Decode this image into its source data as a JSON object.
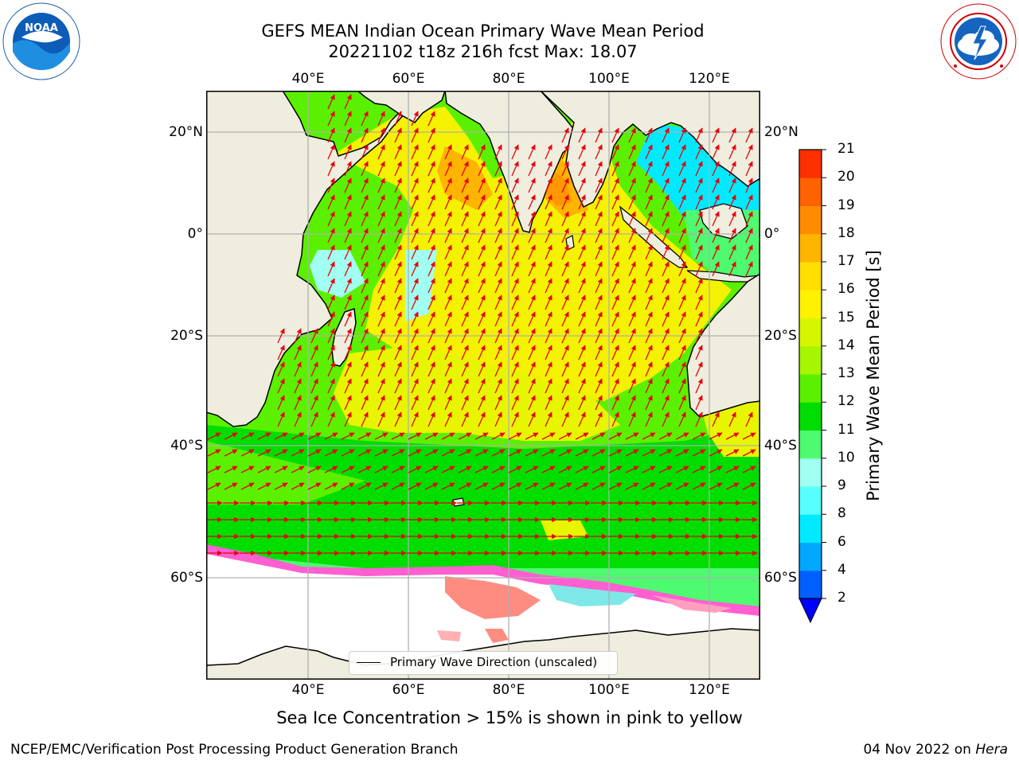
{
  "header": {
    "title_line1": "GEFS MEAN Indian Ocean Primary Wave Mean Period",
    "title_line2": "20221102 t18z 216h fcst   Max: 18.07"
  },
  "logos": {
    "left": {
      "name": "noaa-logo",
      "text": "NOAA",
      "ring_text": "NATIONAL OCEANIC AND ATMOSPHERIC ADMINISTRATION · U.S. DEPARTMENT OF COMMERCE"
    },
    "right": {
      "name": "nws-logo",
      "ring_text": "NATIONAL WEATHER SERVICE"
    }
  },
  "map": {
    "lon_ticks": [
      "40°E",
      "60°E",
      "80°E",
      "100°E",
      "120°E"
    ],
    "lat_ticks_left": [
      "20°N",
      "0°",
      "20°S",
      "40°S",
      "60°S"
    ],
    "lat_ticks_right": [
      "20°N",
      "0°",
      "20°S",
      "40°S",
      "60°S"
    ],
    "legend_label": "Primary Wave Direction (unscaled)",
    "colors": {
      "land": "#efedde",
      "ice_free_ocean": "#ffffff",
      "arrow": "#e8000b",
      "grid": "#b0b0b0"
    }
  },
  "colorbar": {
    "label": "Primary Wave Mean Period [s]",
    "ticks": [
      "2",
      "4",
      "6",
      "8",
      "9",
      "10",
      "11",
      "12",
      "13",
      "14",
      "15",
      "16",
      "17",
      "18",
      "19",
      "20",
      "21"
    ],
    "colors": [
      "#0060ff",
      "#00a8ff",
      "#00eaff",
      "#58ffff",
      "#a0fff0",
      "#4dfa70",
      "#00dd00",
      "#5bf000",
      "#a8f500",
      "#d6f600",
      "#fff200",
      "#ffdf00",
      "#ffb400",
      "#ff8c00",
      "#ff6200",
      "#ff3000",
      "#ff0000"
    ],
    "extend_color": "#0000ff"
  },
  "caption": "Sea Ice Concentration > 15% is shown in pink to yellow",
  "footer": {
    "left": "NCEP/EMC/Verification Post Processing Product Generation Branch",
    "right_prefix": "04 Nov 2022 on ",
    "right_host": "Hera"
  }
}
